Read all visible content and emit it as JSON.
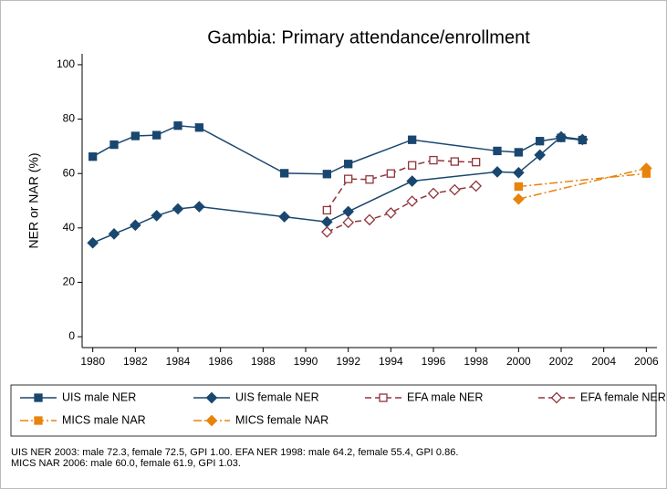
{
  "chart_data": {
    "type": "line",
    "title": "Gambia: Primary attendance/enrollment",
    "y_label": "NER or NAR (%)",
    "xlim": [
      1979.5,
      2006.5
    ],
    "xticks": [
      1980,
      1982,
      1984,
      1986,
      1988,
      1990,
      1992,
      1994,
      1996,
      1998,
      2000,
      2002,
      2004,
      2006
    ],
    "ylim": [
      -4,
      104
    ],
    "yticks": [
      0,
      20,
      40,
      60,
      80,
      100
    ],
    "series": [
      {
        "name": "UIS male NER",
        "color": "#1a476f",
        "marker": "square",
        "filled": true,
        "dash": "solid",
        "x": [
          1980,
          1981,
          1982,
          1983,
          1984,
          1985,
          1989,
          1991,
          1992,
          1995,
          1999,
          2000,
          2001,
          2002,
          2003
        ],
        "values": [
          66.2,
          70.6,
          73.8,
          74.1,
          77.6,
          76.9,
          60.1,
          59.8,
          63.5,
          72.4,
          68.3,
          67.8,
          71.9,
          73.1,
          72.3
        ]
      },
      {
        "name": "UIS female NER",
        "color": "#1a476f",
        "marker": "diamond",
        "filled": true,
        "dash": "solid",
        "x": [
          1980,
          1981,
          1982,
          1983,
          1984,
          1985,
          1989,
          1991,
          1992,
          1995,
          1999,
          2000,
          2001,
          2002,
          2003
        ],
        "values": [
          34.5,
          37.8,
          41.0,
          44.5,
          47.0,
          47.8,
          44.1,
          42.2,
          46.0,
          57.2,
          60.6,
          60.3,
          66.8,
          73.5,
          72.5
        ]
      },
      {
        "name": "EFA male NER",
        "color": "#90353b",
        "marker": "square",
        "filled": false,
        "dash": "dash",
        "x": [
          1991,
          1992,
          1993,
          1994,
          1995,
          1996,
          1997,
          1998
        ],
        "values": [
          46.5,
          58.0,
          57.8,
          60.0,
          63.0,
          64.9,
          64.4,
          64.2
        ]
      },
      {
        "name": "EFA female NER",
        "color": "#90353b",
        "marker": "diamond",
        "filled": false,
        "dash": "dash",
        "x": [
          1991,
          1992,
          1993,
          1994,
          1995,
          1996,
          1997,
          1998
        ],
        "values": [
          38.5,
          42.0,
          43.0,
          45.5,
          49.8,
          52.7,
          54.0,
          55.4
        ]
      },
      {
        "name": "MICS male NAR",
        "color": "#e8830c",
        "marker": "square",
        "filled": true,
        "dash": "dashdot",
        "x": [
          2000,
          2006
        ],
        "values": [
          55.2,
          60.0
        ]
      },
      {
        "name": "MICS female NAR",
        "color": "#e8830c",
        "marker": "diamond",
        "filled": true,
        "dash": "dashdot",
        "x": [
          2000,
          2006
        ],
        "values": [
          50.6,
          61.9
        ]
      }
    ],
    "notes": [
      "UIS NER 2003: male 72.3, female 72.5, GPI 1.00. EFA NER 1998: male 64.2, female 55.4, GPI 0.86.",
      "MICS NAR 2006: male 60.0, female 61.9, GPI 1.03."
    ]
  }
}
